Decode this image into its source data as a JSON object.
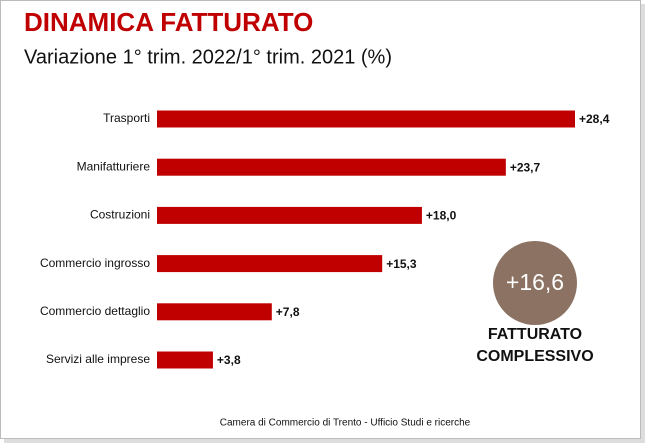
{
  "chart_data": {
    "type": "bar",
    "orientation": "horizontal",
    "title": "DINAMICA FATTURATO",
    "subtitle": "Variazione 1° trim. 2022/1° trim. 2021 (%)",
    "categories": [
      "Trasporti",
      "Manifatturiere",
      "Costruzioni",
      "Commercio ingrosso",
      "Commercio dettaglio",
      "Servizi alle imprese"
    ],
    "values": [
      28.4,
      23.7,
      18.0,
      15.3,
      7.8,
      3.8
    ],
    "value_labels": [
      "+28,4",
      "+23,7",
      "+18,0",
      "+15,3",
      "+7,8",
      "+3,8"
    ],
    "color": "#c00000",
    "xlim": [
      0,
      28.4
    ],
    "total": {
      "value": 16.6,
      "value_label": "+16,6",
      "label": "FATTURATO COMPLESSIVO",
      "color": "#8c7262"
    },
    "source": "Camera di Commercio di Trento - Ufficio Studi e ricerche"
  }
}
